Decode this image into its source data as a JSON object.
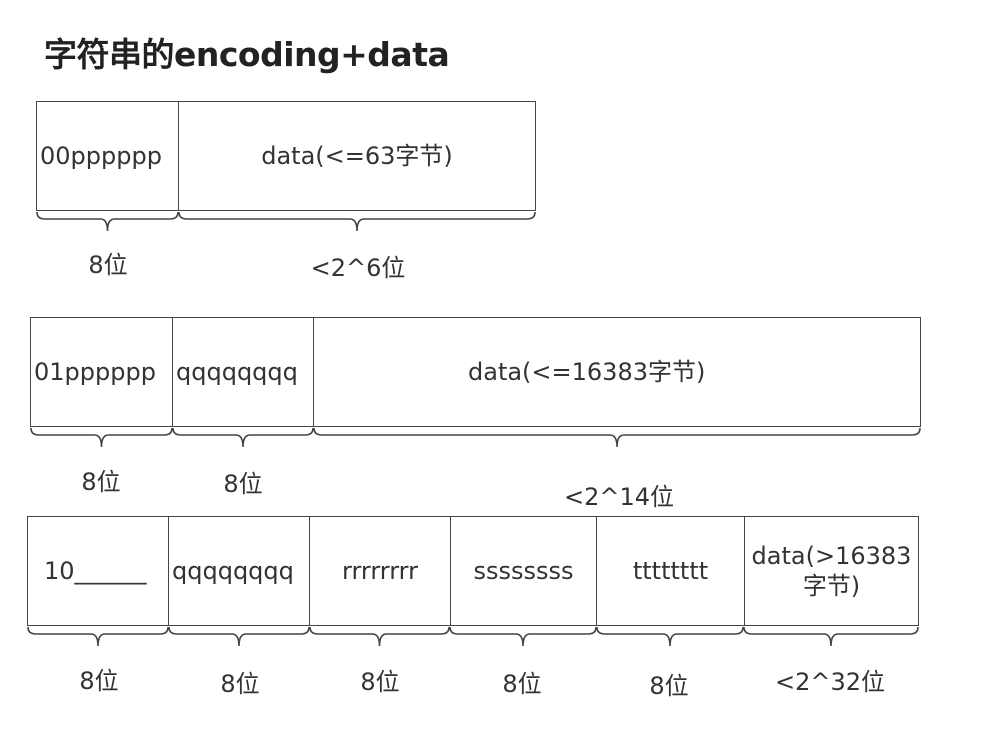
{
  "title": "字符串的encoding+data",
  "rows": [
    {
      "cells": [
        "00pppppp",
        "data(<=63字节)"
      ],
      "labels": [
        "8位",
        "<2^6位"
      ]
    },
    {
      "cells": [
        "01pppppp",
        "qqqqqqqq",
        "data(<=16383字节)"
      ],
      "labels": [
        "8位",
        "8位",
        "<2^14位"
      ]
    },
    {
      "cells": [
        "10______",
        "qqqqqqqq",
        "rrrrrrrr",
        "ssssssss",
        "tttttttt",
        "data(>16383字节)"
      ],
      "labels": [
        "8位",
        "8位",
        "8位",
        "8位",
        "8位",
        "<2^32位"
      ]
    }
  ],
  "colors": {
    "line": "#444444",
    "text": "#333333"
  }
}
